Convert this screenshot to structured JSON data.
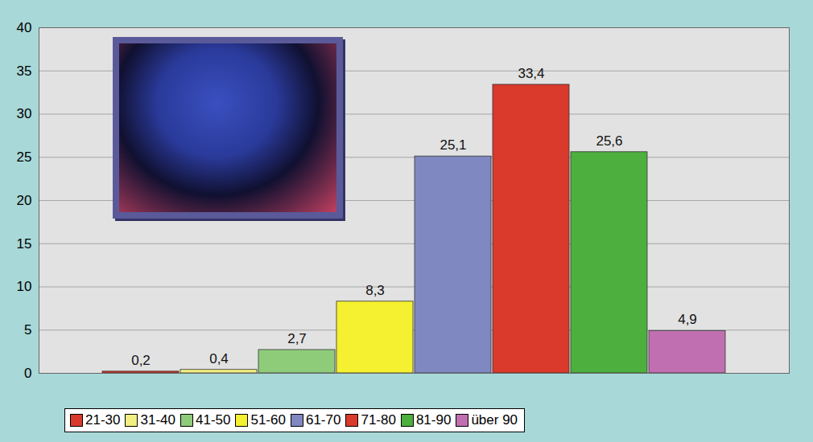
{
  "chart_data": {
    "type": "bar",
    "categories": [
      "21-30",
      "31-40",
      "41-50",
      "51-60",
      "61-70",
      "71-80",
      "81-90",
      "über 90"
    ],
    "values": [
      0.2,
      0.4,
      2.7,
      8.3,
      25.1,
      33.4,
      25.6,
      4.9
    ],
    "value_labels": [
      "0,2",
      "0,4",
      "2,7",
      "8,3",
      "25,1",
      "33,4",
      "25,6",
      "4,9"
    ],
    "colors": [
      "#d93a2b",
      "#f2ee80",
      "#8fcc7a",
      "#f5f030",
      "#7f88c0",
      "#d93a2b",
      "#4caf3e",
      "#c070b0"
    ],
    "ylim": [
      0,
      40
    ],
    "yticks": [
      0,
      5,
      10,
      15,
      20,
      25,
      30,
      35,
      40
    ],
    "grid": true,
    "data_labels": true,
    "tick_labels": "y",
    "legend": "bottom"
  }
}
